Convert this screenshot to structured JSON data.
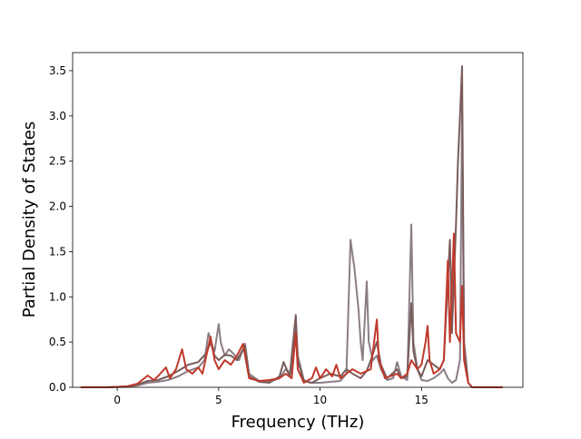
{
  "chart_data": {
    "type": "line",
    "title": "",
    "xlabel": "Frequency (THz)",
    "ylabel": "Partial Density of States",
    "xlim": [
      -2.2,
      20.0
    ],
    "ylim": [
      0,
      3.7
    ],
    "xticks": [
      0,
      5,
      10,
      15
    ],
    "yticks": [
      0.0,
      0.5,
      1.0,
      1.5,
      2.0,
      2.5,
      3.0,
      3.5
    ],
    "xtick_labels": [
      "0",
      "5",
      "10",
      "15"
    ],
    "ytick_labels": [
      "0.0",
      "0.5",
      "1.0",
      "1.5",
      "2.0",
      "2.5",
      "3.0",
      "3.5"
    ],
    "grid": false,
    "series": [
      {
        "color": "#8a7d86",
        "points": [
          [
            -1.8,
            0
          ],
          [
            -0.5,
            0
          ],
          [
            0.5,
            0.005
          ],
          [
            1.0,
            0.02
          ],
          [
            1.5,
            0.05
          ],
          [
            2.0,
            0.06
          ],
          [
            2.5,
            0.08
          ],
          [
            3.0,
            0.12
          ],
          [
            3.5,
            0.18
          ],
          [
            4.0,
            0.22
          ],
          [
            4.3,
            0.3
          ],
          [
            4.5,
            0.6
          ],
          [
            4.7,
            0.45
          ],
          [
            4.8,
            0.4
          ],
          [
            5.0,
            0.7
          ],
          [
            5.1,
            0.5
          ],
          [
            5.3,
            0.35
          ],
          [
            5.5,
            0.42
          ],
          [
            5.7,
            0.38
          ],
          [
            6.0,
            0.3
          ],
          [
            6.3,
            0.48
          ],
          [
            6.5,
            0.15
          ],
          [
            7.0,
            0.07
          ],
          [
            7.5,
            0.06
          ],
          [
            8.0,
            0.1
          ],
          [
            8.3,
            0.2
          ],
          [
            8.6,
            0.15
          ],
          [
            8.8,
            0.75
          ],
          [
            8.9,
            0.35
          ],
          [
            9.2,
            0.08
          ],
          [
            9.5,
            0.05
          ],
          [
            10.0,
            0.05
          ],
          [
            10.5,
            0.06
          ],
          [
            11.0,
            0.07
          ],
          [
            11.3,
            0.15
          ],
          [
            11.5,
            1.63
          ],
          [
            11.7,
            1.3
          ],
          [
            11.9,
            0.85
          ],
          [
            12.0,
            0.5
          ],
          [
            12.1,
            0.3
          ],
          [
            12.3,
            1.17
          ],
          [
            12.4,
            0.5
          ],
          [
            12.6,
            0.3
          ],
          [
            12.8,
            0.35
          ],
          [
            13.0,
            0.2
          ],
          [
            13.3,
            0.08
          ],
          [
            13.6,
            0.1
          ],
          [
            13.8,
            0.28
          ],
          [
            14.0,
            0.12
          ],
          [
            14.3,
            0.08
          ],
          [
            14.5,
            1.8
          ],
          [
            14.6,
            0.5
          ],
          [
            14.8,
            0.2
          ],
          [
            15.0,
            0.08
          ],
          [
            15.3,
            0.07
          ],
          [
            15.6,
            0.1
          ],
          [
            15.9,
            0.15
          ],
          [
            16.1,
            0.2
          ],
          [
            16.3,
            0.1
          ],
          [
            16.5,
            0.05
          ],
          [
            16.7,
            0.08
          ],
          [
            16.9,
            0.3
          ],
          [
            17.0,
            3.1
          ],
          [
            17.1,
            0.4
          ],
          [
            17.3,
            0.05
          ],
          [
            17.5,
            0
          ],
          [
            19.0,
            0
          ]
        ]
      },
      {
        "color": "#7a5c5c",
        "points": [
          [
            -1.8,
            0
          ],
          [
            -0.5,
            0
          ],
          [
            0.5,
            0.01
          ],
          [
            1.0,
            0.03
          ],
          [
            1.5,
            0.07
          ],
          [
            2.0,
            0.08
          ],
          [
            2.5,
            0.12
          ],
          [
            3.0,
            0.18
          ],
          [
            3.5,
            0.25
          ],
          [
            4.0,
            0.28
          ],
          [
            4.4,
            0.38
          ],
          [
            4.6,
            0.5
          ],
          [
            4.8,
            0.35
          ],
          [
            5.0,
            0.3
          ],
          [
            5.3,
            0.36
          ],
          [
            5.6,
            0.35
          ],
          [
            5.9,
            0.3
          ],
          [
            6.3,
            0.46
          ],
          [
            6.5,
            0.12
          ],
          [
            7.0,
            0.06
          ],
          [
            7.5,
            0.05
          ],
          [
            8.0,
            0.12
          ],
          [
            8.2,
            0.28
          ],
          [
            8.5,
            0.12
          ],
          [
            8.8,
            0.8
          ],
          [
            8.9,
            0.3
          ],
          [
            9.2,
            0.07
          ],
          [
            9.6,
            0.05
          ],
          [
            10.0,
            0.1
          ],
          [
            10.5,
            0.15
          ],
          [
            11.0,
            0.12
          ],
          [
            11.3,
            0.2
          ],
          [
            11.6,
            0.15
          ],
          [
            12.0,
            0.1
          ],
          [
            12.3,
            0.18
          ],
          [
            12.5,
            0.3
          ],
          [
            12.8,
            0.5
          ],
          [
            13.0,
            0.25
          ],
          [
            13.3,
            0.1
          ],
          [
            13.8,
            0.2
          ],
          [
            14.0,
            0.1
          ],
          [
            14.3,
            0.12
          ],
          [
            14.5,
            0.93
          ],
          [
            14.6,
            0.4
          ],
          [
            14.8,
            0.2
          ],
          [
            15.0,
            0.12
          ],
          [
            15.3,
            0.3
          ],
          [
            15.6,
            0.25
          ],
          [
            15.9,
            0.2
          ],
          [
            16.1,
            0.3
          ],
          [
            16.4,
            1.63
          ],
          [
            16.5,
            0.6
          ],
          [
            16.7,
            1.8
          ],
          [
            16.8,
            2.5
          ],
          [
            16.9,
            3.0
          ],
          [
            17.0,
            3.55
          ],
          [
            17.1,
            0.5
          ],
          [
            17.3,
            0.05
          ],
          [
            17.5,
            0
          ],
          [
            19.0,
            0
          ]
        ]
      },
      {
        "color": "#c0392b",
        "points": [
          [
            -1.8,
            0
          ],
          [
            -0.5,
            0
          ],
          [
            0.5,
            0.01
          ],
          [
            1.0,
            0.04
          ],
          [
            1.5,
            0.13
          ],
          [
            1.8,
            0.08
          ],
          [
            2.0,
            0.12
          ],
          [
            2.4,
            0.22
          ],
          [
            2.6,
            0.1
          ],
          [
            2.9,
            0.2
          ],
          [
            3.2,
            0.42
          ],
          [
            3.4,
            0.2
          ],
          [
            3.7,
            0.15
          ],
          [
            4.0,
            0.22
          ],
          [
            4.2,
            0.15
          ],
          [
            4.6,
            0.56
          ],
          [
            4.8,
            0.3
          ],
          [
            5.0,
            0.2
          ],
          [
            5.3,
            0.3
          ],
          [
            5.6,
            0.25
          ],
          [
            5.9,
            0.35
          ],
          [
            6.2,
            0.48
          ],
          [
            6.5,
            0.1
          ],
          [
            7.0,
            0.07
          ],
          [
            7.5,
            0.08
          ],
          [
            8.0,
            0.1
          ],
          [
            8.3,
            0.15
          ],
          [
            8.6,
            0.1
          ],
          [
            8.8,
            0.6
          ],
          [
            8.9,
            0.2
          ],
          [
            9.2,
            0.05
          ],
          [
            9.6,
            0.1
          ],
          [
            9.8,
            0.22
          ],
          [
            10.0,
            0.1
          ],
          [
            10.3,
            0.2
          ],
          [
            10.6,
            0.12
          ],
          [
            10.8,
            0.25
          ],
          [
            11.0,
            0.1
          ],
          [
            11.3,
            0.15
          ],
          [
            11.6,
            0.2
          ],
          [
            12.0,
            0.15
          ],
          [
            12.5,
            0.2
          ],
          [
            12.8,
            0.75
          ],
          [
            12.9,
            0.3
          ],
          [
            13.2,
            0.1
          ],
          [
            13.8,
            0.15
          ],
          [
            14.0,
            0.1
          ],
          [
            14.3,
            0.15
          ],
          [
            14.5,
            0.3
          ],
          [
            14.8,
            0.2
          ],
          [
            15.0,
            0.25
          ],
          [
            15.2,
            0.5
          ],
          [
            15.3,
            0.68
          ],
          [
            15.4,
            0.3
          ],
          [
            15.6,
            0.15
          ],
          [
            15.9,
            0.2
          ],
          [
            16.1,
            0.3
          ],
          [
            16.3,
            1.4
          ],
          [
            16.4,
            0.5
          ],
          [
            16.6,
            1.7
          ],
          [
            16.7,
            0.6
          ],
          [
            16.9,
            0.5
          ],
          [
            17.0,
            1.12
          ],
          [
            17.1,
            0.3
          ],
          [
            17.3,
            0.05
          ],
          [
            17.5,
            0
          ],
          [
            19.0,
            0
          ]
        ]
      }
    ]
  }
}
